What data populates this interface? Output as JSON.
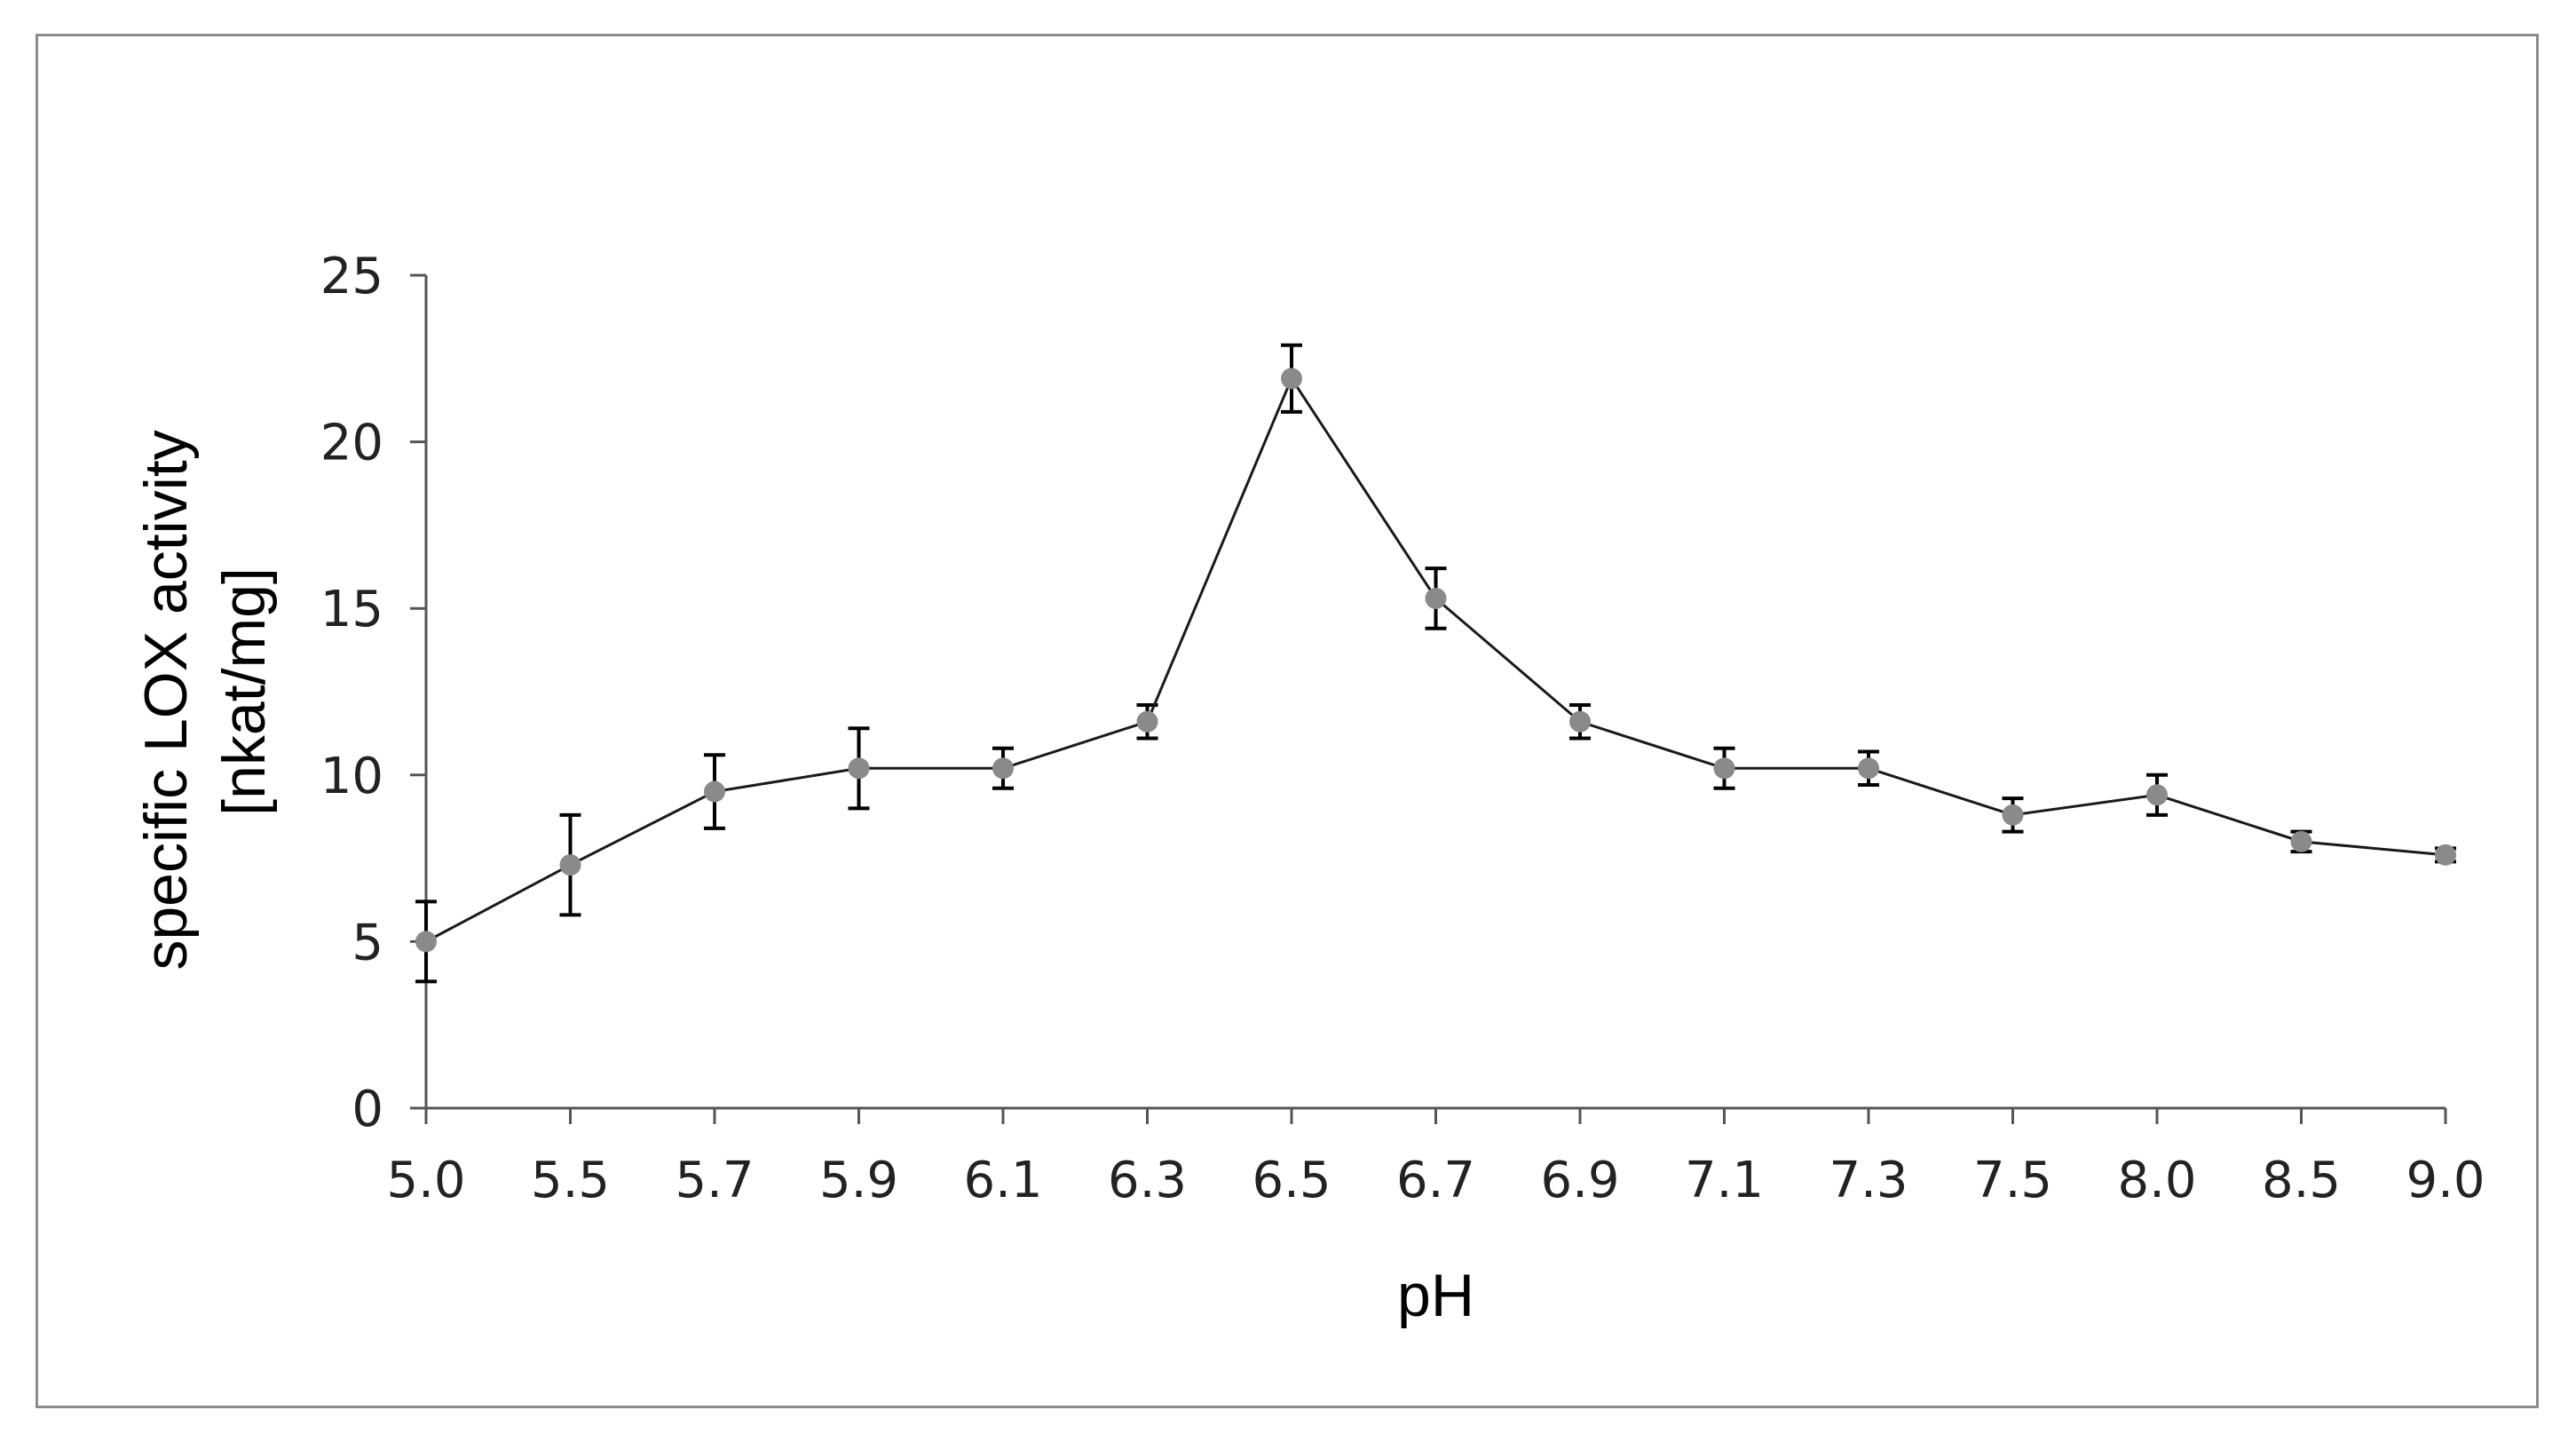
{
  "chart_data": {
    "type": "line",
    "title": "",
    "xlabel": "pH",
    "ylabel_lines": [
      "specific LOX activity",
      "[nkat/mg]"
    ],
    "categories": [
      "5.0",
      "5.5",
      "5.7",
      "5.9",
      "6.1",
      "6.3",
      "6.5",
      "6.7",
      "6.9",
      "7.1",
      "7.3",
      "7.5",
      "8.0",
      "8.5",
      "9.0"
    ],
    "series": [
      {
        "values": [
          5.0,
          7.3,
          9.5,
          10.2,
          10.2,
          11.6,
          21.9,
          15.3,
          11.6,
          10.2,
          10.2,
          8.8,
          9.4,
          8.0,
          7.6
        ],
        "errors": [
          1.2,
          1.5,
          1.1,
          1.2,
          0.6,
          0.5,
          1.0,
          0.9,
          0.5,
          0.6,
          0.5,
          0.5,
          0.6,
          0.3,
          0.2
        ]
      }
    ],
    "ylim": [
      0,
      25
    ],
    "yticks": [
      0,
      5,
      10,
      15,
      20,
      25
    ],
    "grid": false,
    "legend": "none",
    "colors": {
      "line": "#1a1a1a",
      "marker": "#8a8a8a",
      "errorbar": "#000000",
      "axis": "#555555"
    }
  }
}
